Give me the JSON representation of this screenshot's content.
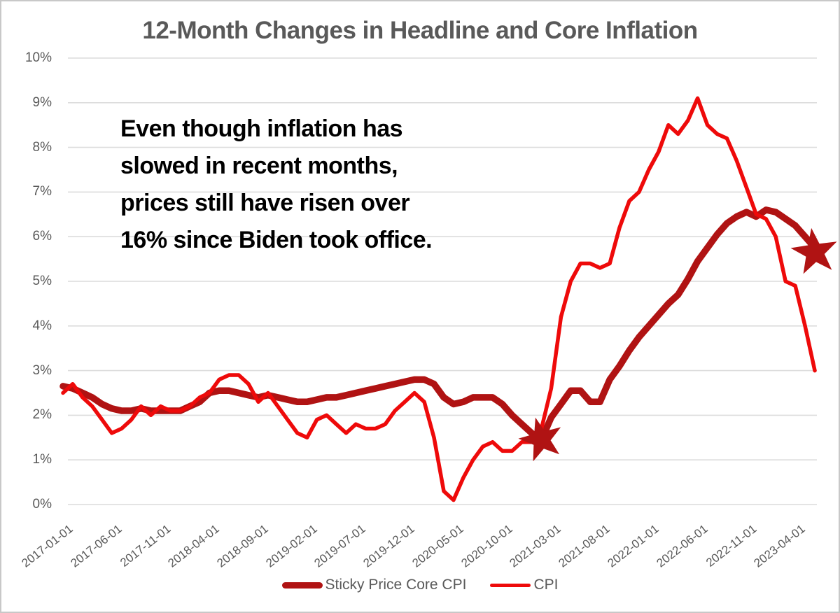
{
  "title": {
    "text": "12-Month Changes in Headline and Core Inflation",
    "color": "#595959"
  },
  "annotation": {
    "lines": [
      "Even though inflation has",
      "slowed in recent months,",
      "prices still have risen over",
      "16% since Biden took office."
    ],
    "color": "#000000"
  },
  "legend": {
    "items": [
      {
        "label": "Sticky Price Core CPI",
        "color": "#b01313",
        "style": "thick"
      },
      {
        "label": "CPI",
        "color": "#ee0a0a",
        "style": "thin"
      }
    ]
  },
  "colors": {
    "grid": "#dcdcdc",
    "axis_text": "#595959",
    "border": "#c8c8c8",
    "background": "#ffffff"
  },
  "chart_data": {
    "type": "line",
    "title": "12-Month Changes in Headline and Core Inflation",
    "xlabel": "",
    "ylabel": "",
    "ylim": [
      0,
      10
    ],
    "grid": "horizontal",
    "legend_position": "bottom",
    "y_ticks": [
      "0%",
      "1%",
      "2%",
      "3%",
      "4%",
      "5%",
      "6%",
      "7%",
      "8%",
      "9%",
      "10%"
    ],
    "x_tick_labels": [
      "2017-01-01",
      "2017-06-01",
      "2017-11-01",
      "2018-04-01",
      "2018-09-01",
      "2019-02-01",
      "2019-07-01",
      "2019-12-01",
      "2020-05-01",
      "2020-10-01",
      "2021-03-01",
      "2021-08-01",
      "2022-01-01",
      "2022-06-01",
      "2022-11-01",
      "2023-04-01"
    ],
    "x": [
      "2017-01",
      "2017-02",
      "2017-03",
      "2017-04",
      "2017-05",
      "2017-06",
      "2017-07",
      "2017-08",
      "2017-09",
      "2017-10",
      "2017-11",
      "2017-12",
      "2018-01",
      "2018-02",
      "2018-03",
      "2018-04",
      "2018-05",
      "2018-06",
      "2018-07",
      "2018-08",
      "2018-09",
      "2018-10",
      "2018-11",
      "2018-12",
      "2019-01",
      "2019-02",
      "2019-03",
      "2019-04",
      "2019-05",
      "2019-06",
      "2019-07",
      "2019-08",
      "2019-09",
      "2019-10",
      "2019-11",
      "2019-12",
      "2020-01",
      "2020-02",
      "2020-03",
      "2020-04",
      "2020-05",
      "2020-06",
      "2020-07",
      "2020-08",
      "2020-09",
      "2020-10",
      "2020-11",
      "2020-12",
      "2021-01",
      "2021-02",
      "2021-03",
      "2021-04",
      "2021-05",
      "2021-06",
      "2021-07",
      "2021-08",
      "2021-09",
      "2021-10",
      "2021-11",
      "2021-12",
      "2022-01",
      "2022-02",
      "2022-03",
      "2022-04",
      "2022-05",
      "2022-06",
      "2022-07",
      "2022-08",
      "2022-09",
      "2022-10",
      "2022-11",
      "2022-12",
      "2023-01",
      "2023-02",
      "2023-03",
      "2023-04",
      "2023-05",
      "2023-06"
    ],
    "series": [
      {
        "name": "Sticky Price Core CPI",
        "color": "#b01313",
        "stroke_width": 9.5,
        "values": [
          2.65,
          2.6,
          2.5,
          2.4,
          2.25,
          2.15,
          2.1,
          2.1,
          2.15,
          2.1,
          2.1,
          2.1,
          2.1,
          2.2,
          2.3,
          2.5,
          2.55,
          2.55,
          2.5,
          2.45,
          2.4,
          2.45,
          2.4,
          2.35,
          2.3,
          2.3,
          2.35,
          2.4,
          2.4,
          2.45,
          2.5,
          2.55,
          2.6,
          2.65,
          2.7,
          2.75,
          2.8,
          2.8,
          2.7,
          2.4,
          2.25,
          2.3,
          2.4,
          2.4,
          2.4,
          2.25,
          2.0,
          1.8,
          1.6,
          1.45,
          1.95,
          2.25,
          2.55,
          2.55,
          2.3,
          2.3,
          2.8,
          3.1,
          3.45,
          3.75,
          4.0,
          4.25,
          4.5,
          4.7,
          5.05,
          5.45,
          5.75,
          6.05,
          6.3,
          6.45,
          6.55,
          6.45,
          6.6,
          6.55,
          6.4,
          6.25,
          6.0,
          5.75
        ]
      },
      {
        "name": "CPI",
        "color": "#ee0a0a",
        "stroke_width": 5.5,
        "values": [
          2.5,
          2.7,
          2.4,
          2.2,
          1.9,
          1.6,
          1.7,
          1.9,
          2.2,
          2.0,
          2.2,
          2.1,
          2.1,
          2.2,
          2.4,
          2.5,
          2.8,
          2.9,
          2.9,
          2.7,
          2.3,
          2.5,
          2.2,
          1.9,
          1.6,
          1.5,
          1.9,
          2.0,
          1.8,
          1.6,
          1.8,
          1.7,
          1.7,
          1.8,
          2.1,
          2.3,
          2.5,
          2.3,
          1.5,
          0.3,
          0.1,
          0.6,
          1.0,
          1.3,
          1.4,
          1.2,
          1.2,
          1.4,
          1.4,
          1.7,
          2.6,
          4.2,
          5.0,
          5.4,
          5.4,
          5.3,
          5.4,
          6.2,
          6.8,
          7.0,
          7.5,
          7.9,
          8.5,
          8.3,
          8.6,
          9.1,
          8.5,
          8.3,
          8.2,
          7.7,
          7.1,
          6.5,
          6.4,
          6.0,
          5.0,
          4.9,
          4.0,
          3.0
        ]
      }
    ],
    "markers": [
      {
        "shape": "star",
        "name": "biden-took-office-star",
        "x": "2021-02",
        "value": 1.45,
        "color": "#b01313",
        "radius": 33,
        "rotation": -15
      },
      {
        "shape": "star",
        "name": "latest-value-star",
        "x": "2023-06",
        "value": 5.65,
        "color": "#b01313",
        "radius": 35,
        "rotation": -8
      }
    ]
  }
}
